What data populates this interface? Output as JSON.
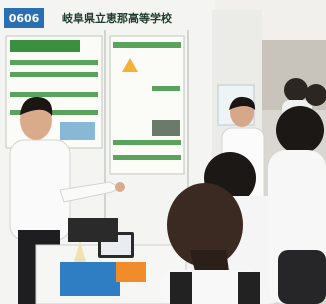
{
  "sign": {
    "number": "0606",
    "school": "岐阜県立恵那高等学校"
  }
}
